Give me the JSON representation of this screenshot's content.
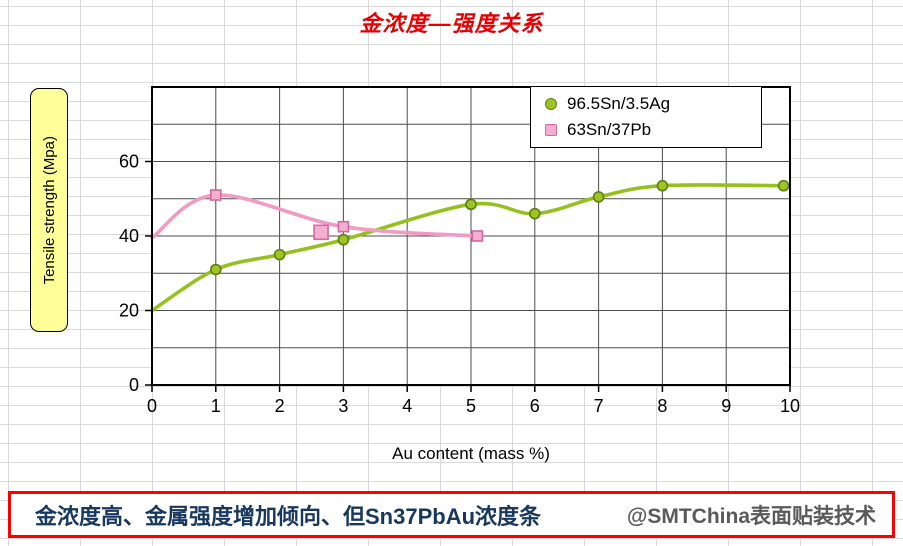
{
  "title": "金浓度—强度关系",
  "chart_data": {
    "type": "line",
    "title": "金浓度—强度关系",
    "xlabel": "Au content (mass %)",
    "ylabel": "Tensile strength (Mpa)",
    "xlim": [
      0,
      10
    ],
    "ylim": [
      0,
      80
    ],
    "xticks": [
      0,
      1,
      2,
      3,
      4,
      5,
      6,
      7,
      8,
      9,
      10
    ],
    "yticks": [
      0,
      20,
      40,
      60
    ],
    "grid": true,
    "grid_step_y": 10,
    "legend_position": "top-right",
    "series": [
      {
        "name": "96.5Sn/3.5Ag",
        "marker": "circle",
        "color": "#94c11f",
        "marker_fill": "#9ec521",
        "marker_stroke": "#5f7d16",
        "x": [
          0,
          1,
          2,
          3,
          5,
          6,
          7,
          8,
          9.9
        ],
        "y": [
          20,
          31,
          35,
          39,
          48.5,
          46,
          50.5,
          53.5,
          53.5
        ]
      },
      {
        "name": "63Sn/37Pb",
        "marker": "square",
        "color": "#f09ac4",
        "marker_fill": "#f4aed0",
        "marker_stroke": "#d567a4",
        "x": [
          0,
          1,
          3,
          5.1
        ],
        "y": [
          39.5,
          51,
          42.5,
          40
        ],
        "extra_markers": [
          {
            "x": 2.65,
            "y": 41,
            "size": 14
          }
        ]
      }
    ]
  },
  "banner": {
    "text": "金浓度高、金属强度增加倾向、但Sn37PbAu浓度条",
    "watermark": "@SMTChina表面贴装技术"
  }
}
